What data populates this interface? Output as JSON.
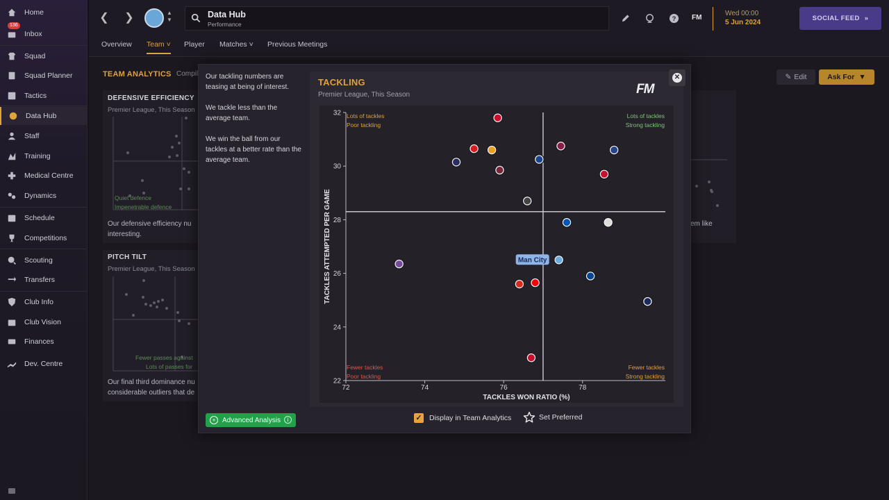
{
  "sidebar": {
    "items": [
      {
        "label": "Home",
        "icon": "home-icon"
      },
      {
        "label": "Inbox",
        "icon": "inbox-icon",
        "badge": "136"
      },
      {
        "label": "Squad",
        "icon": "shirt-icon"
      },
      {
        "label": "Squad Planner",
        "icon": "planner-icon"
      },
      {
        "label": "Tactics",
        "icon": "tactics-icon"
      },
      {
        "label": "Data Hub",
        "icon": "data-hub-icon"
      },
      {
        "label": "Staff",
        "icon": "staff-icon"
      },
      {
        "label": "Training",
        "icon": "training-icon"
      },
      {
        "label": "Medical Centre",
        "icon": "medical-icon"
      },
      {
        "label": "Dynamics",
        "icon": "dynamics-icon"
      },
      {
        "label": "Schedule",
        "icon": "calendar-icon"
      },
      {
        "label": "Competitions",
        "icon": "trophy-icon"
      },
      {
        "label": "Scouting",
        "icon": "scouting-icon"
      },
      {
        "label": "Transfers",
        "icon": "transfers-icon"
      },
      {
        "label": "Club Info",
        "icon": "shield-icon"
      },
      {
        "label": "Club Vision",
        "icon": "vision-icon"
      },
      {
        "label": "Finances",
        "icon": "finances-icon"
      },
      {
        "label": "Dev. Centre",
        "icon": "dev-centre-icon"
      }
    ]
  },
  "topbar": {
    "search_title": "Data Hub",
    "search_sub": "Performance",
    "fm_mini": "FM",
    "date_day": "Wed 00:00",
    "date_date": "5 Jun 2024",
    "social_feed": "SOCIAL FEED"
  },
  "subtabs": [
    {
      "label": "Overview"
    },
    {
      "label": "Team"
    },
    {
      "label": "Player"
    },
    {
      "label": "Matches"
    },
    {
      "label": "Previous Meetings"
    }
  ],
  "background": {
    "section_title": "TEAM ANALYTICS",
    "section_compiled": "Compil",
    "edit_label": "Edit",
    "askfor_label": "Ask For",
    "defensive_title": "DEFENSIVE EFFICIENCY",
    "defensive_sub": "Premier League, This Season",
    "defensive_q1": "Quiet defence",
    "defensive_q2": "Impenetrable defence",
    "defensive_text1": "Our defensive efficiency nu",
    "defensive_text2": "interesting.",
    "right_text": "em like",
    "pitch_title": "PITCH TILT",
    "pitch_sub": "Premier League, This Season",
    "pitch_q1": "Fewer passes against",
    "pitch_q2": "Lots of passes for",
    "pitch_text1": "Our final third dominance nu",
    "pitch_text2": "considerable outliers that de"
  },
  "modal": {
    "insights": [
      "Our tackling numbers are teasing at being of interest.",
      "We tackle less than the average team.",
      "We win the ball from our tackles at a better rate than the average team."
    ],
    "advanced_label": "Advanced Analysis",
    "chart_title": "TACKLING",
    "chart_sub": "Premier League, This Season",
    "fm_logo": "FM",
    "display_label": "Display in Team Analytics",
    "set_preferred_label": "Set Preferred"
  },
  "chart_data": {
    "type": "scatter",
    "title": "TACKLING",
    "subtitle": "Premier League, This Season",
    "xlabel": "TACKLES WON RATIO (%)",
    "ylabel": "TACKLES ATTEMPTED PER GAME",
    "xlim": [
      72,
      80.1
    ],
    "ylim": [
      22,
      32
    ],
    "xticks": [
      72,
      74,
      76,
      78
    ],
    "yticks": [
      22,
      24,
      26,
      28,
      30,
      32
    ],
    "avg_x": 77.0,
    "avg_y": 28.3,
    "quadrants": {
      "top_left": [
        "Lots of tackles",
        "Poor tackling"
      ],
      "top_right": [
        "Lots of tackles",
        "Strong tackling"
      ],
      "bottom_left": [
        "Fewer tackles",
        "Poor tackling"
      ],
      "bottom_right": [
        "Fewer tackles",
        "Strong tackling"
      ]
    },
    "quadrant_colors": {
      "good": "#7ec87a",
      "mid": "#e0a23a",
      "bad": "#d9574a"
    },
    "highlight_label": "Man City",
    "points": [
      {
        "x": 75.85,
        "y": 31.8,
        "color": "#c8102e"
      },
      {
        "x": 75.25,
        "y": 30.65,
        "color": "#d71920"
      },
      {
        "x": 75.7,
        "y": 30.6,
        "color": "#e8a020"
      },
      {
        "x": 74.8,
        "y": 30.15,
        "color": "#2b2d5e"
      },
      {
        "x": 76.9,
        "y": 30.25,
        "color": "#1b458f"
      },
      {
        "x": 77.45,
        "y": 30.75,
        "color": "#8a1d4a"
      },
      {
        "x": 78.8,
        "y": 30.6,
        "color": "#274488"
      },
      {
        "x": 75.9,
        "y": 29.85,
        "color": "#7a263a"
      },
      {
        "x": 78.55,
        "y": 29.7,
        "color": "#c8102e"
      },
      {
        "x": 76.6,
        "y": 28.7,
        "color": "#444444"
      },
      {
        "x": 77.6,
        "y": 27.9,
        "color": "#0057b8"
      },
      {
        "x": 78.65,
        "y": 27.9,
        "color": "#dddddd"
      },
      {
        "x": 73.35,
        "y": 26.35,
        "color": "#7a4a9a"
      },
      {
        "x": 77.4,
        "y": 26.5,
        "color": "#6cabdd",
        "highlight": true
      },
      {
        "x": 78.2,
        "y": 25.9,
        "color": "#034694"
      },
      {
        "x": 76.8,
        "y": 25.65,
        "color": "#ef0107"
      },
      {
        "x": 76.4,
        "y": 25.6,
        "color": "#da291c"
      },
      {
        "x": 79.65,
        "y": 24.95,
        "color": "#1a2a5a"
      },
      {
        "x": 76.7,
        "y": 22.85,
        "color": "#c8102e"
      }
    ]
  }
}
